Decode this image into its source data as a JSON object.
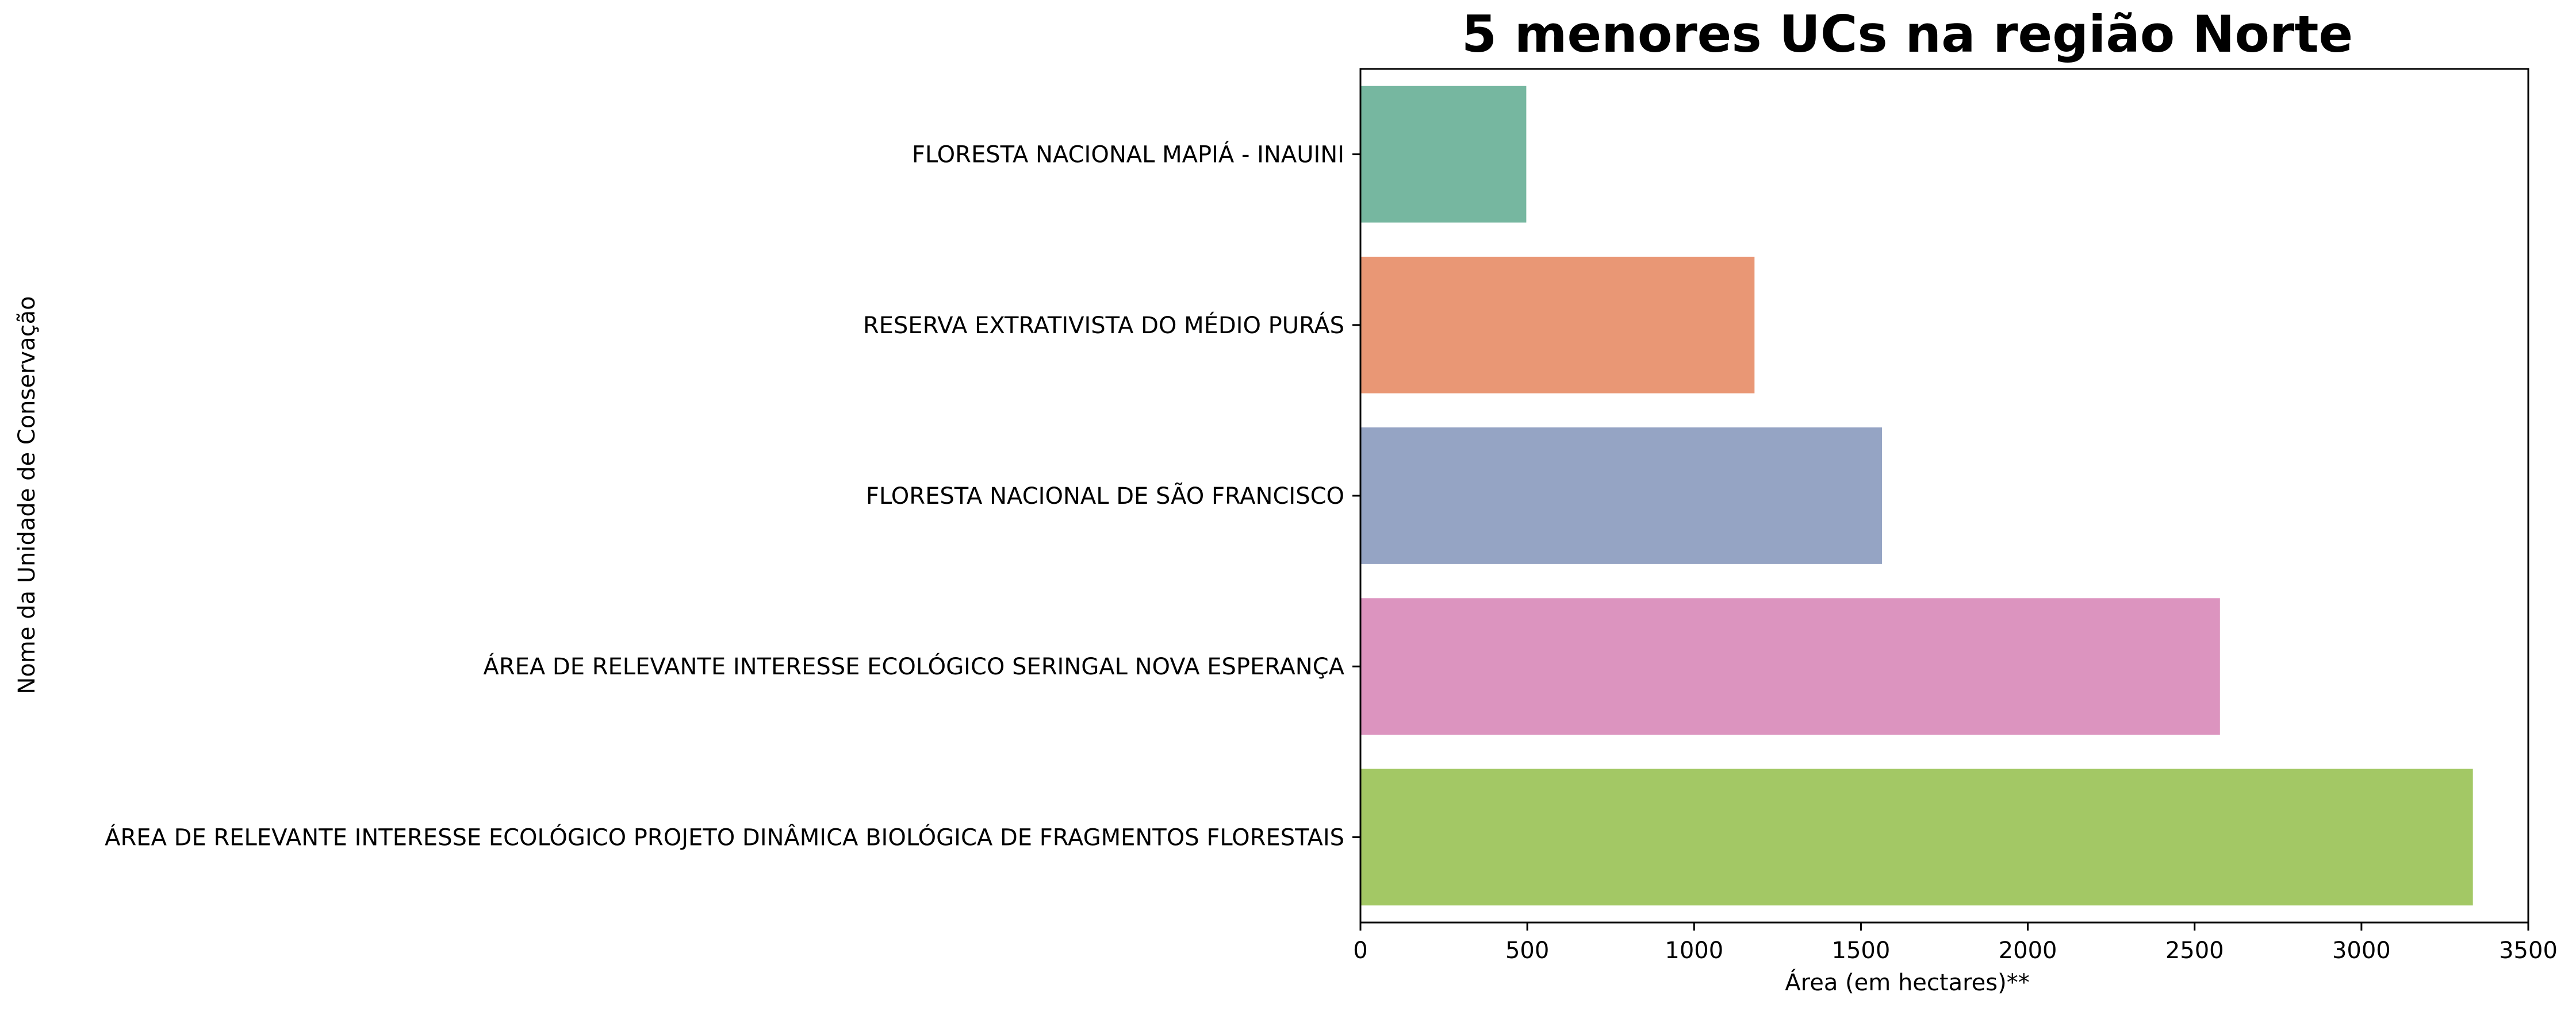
{
  "chart_data": {
    "type": "bar",
    "orientation": "horizontal",
    "title": "5 menores UCs na região Norte",
    "xlabel": "Área (em hectares)**",
    "ylabel": "Nome da Unidade de Conservação",
    "xlim": [
      0,
      3500
    ],
    "xticks": [
      0,
      500,
      1000,
      1500,
      2000,
      2500,
      3000,
      3500
    ],
    "grid": false,
    "legend": "none",
    "categories": [
      "FLORESTA NACIONAL MAPIÁ - INAUINI",
      "RESERVA EXTRATIVISTA DO MÉDIO PURÁS",
      "FLORESTA NACIONAL DE SÃO FRANCISCO",
      "ÁREA DE RELEVANTE INTERESSE ECOLÓGICO SERINGAL NOVA ESPERANÇA",
      "ÁREA DE RELEVANTE INTERESSE ECOLÓGICO PROJETO DINÂMICA BIOLÓGICA DE FRAGMENTOS FLORESTAIS"
    ],
    "values": [
      497,
      1181,
      1563,
      2576,
      3334
    ],
    "colors": [
      "#76b7a0",
      "#e99775",
      "#95a4c4",
      "#dc94bf",
      "#a3c865"
    ]
  }
}
